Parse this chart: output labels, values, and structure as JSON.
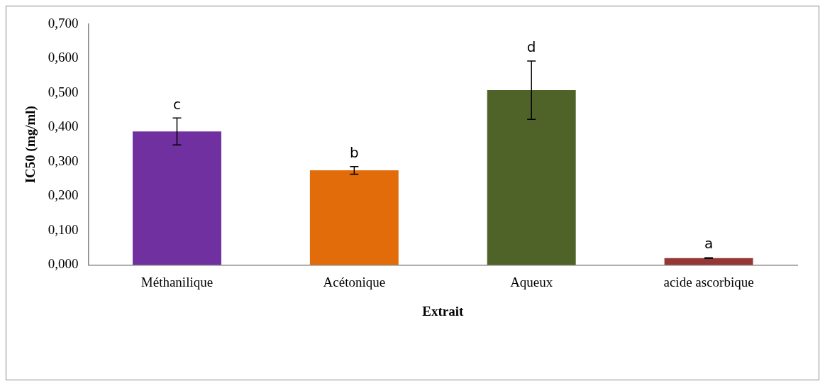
{
  "chart_data": {
    "type": "bar",
    "xlabel": "Extrait",
    "ylabel": "IC50 (mg/ml)",
    "categories": [
      "Méthanilique",
      "Acétonique",
      "Aqueux",
      "acide ascorbique"
    ],
    "values": [
      0.388,
      0.275,
      0.508,
      0.02
    ],
    "colors": [
      "#7030a0",
      "#e36c0a",
      "#4f6228",
      "#953735"
    ],
    "errors": [
      0.039,
      0.011,
      0.085,
      0.001
    ],
    "ylim": [
      0,
      0.7
    ],
    "yticks": [
      {
        "value": 0,
        "label": "0,000"
      },
      {
        "value": 0.1,
        "label": "0,100"
      },
      {
        "value": 0.2,
        "label": "0,200"
      },
      {
        "value": 0.3,
        "label": "0,300"
      },
      {
        "value": 0.4,
        "label": "0,400"
      },
      {
        "value": 0.5,
        "label": "0,500"
      },
      {
        "value": 0.6,
        "label": "0,600"
      },
      {
        "value": 0.7,
        "label": "0,700"
      }
    ],
    "annotations": [
      {
        "text": "c",
        "x": "Méthanilique",
        "y": 0.427
      },
      {
        "text": "b",
        "x": "Acétonique",
        "y": 0.286
      },
      {
        "text": "d",
        "x": "Aqueux",
        "y": 0.593
      },
      {
        "text": "a",
        "x": "acide ascorbique",
        "y": 0.021
      }
    ],
    "grid": false,
    "legend": false
  }
}
